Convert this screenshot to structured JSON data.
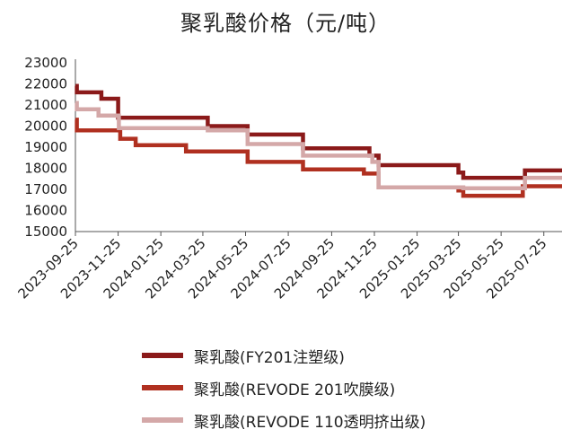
{
  "chart_data": {
    "type": "line",
    "title": "聚乳酸价格（元/吨）",
    "step": true,
    "ylim": [
      15000,
      23000
    ],
    "yticks": [
      15000,
      16000,
      17000,
      18000,
      19000,
      20000,
      21000,
      22000,
      23000
    ],
    "xlim": [
      "2023-09-25",
      "2025-08-20"
    ],
    "xticks": [
      "2023-09-25",
      "2023-11-25",
      "2024-01-25",
      "2024-03-25",
      "2024-05-25",
      "2024-07-25",
      "2024-09-25",
      "2024-11-25",
      "2025-01-25",
      "2025-03-25",
      "2025-05-25",
      "2025-07-25"
    ],
    "legend_position": "bottom",
    "series": [
      {
        "name": "聚乳酸(FY201注塑级)",
        "color": "#8b1a1a",
        "points": [
          [
            "2023-09-25",
            21900
          ],
          [
            "2023-09-27",
            21600
          ],
          [
            "2023-11-01",
            21300
          ],
          [
            "2023-11-25",
            20400
          ],
          [
            "2024-04-01",
            20000
          ],
          [
            "2024-05-28",
            19600
          ],
          [
            "2024-08-15",
            18950
          ],
          [
            "2024-11-18",
            18600
          ],
          [
            "2024-12-01",
            18150
          ],
          [
            "2025-03-25",
            17800
          ],
          [
            "2025-04-01",
            17550
          ],
          [
            "2025-06-28",
            17900
          ],
          [
            "2025-08-20",
            17900
          ]
        ]
      },
      {
        "name": "聚乳酸(REVODE 201吹膜级)",
        "color": "#b03020",
        "points": [
          [
            "2023-09-25",
            20300
          ],
          [
            "2023-09-27",
            19800
          ],
          [
            "2023-11-28",
            19400
          ],
          [
            "2023-12-20",
            19100
          ],
          [
            "2024-03-01",
            18800
          ],
          [
            "2024-05-28",
            18300
          ],
          [
            "2024-08-15",
            17950
          ],
          [
            "2024-11-10",
            17750
          ],
          [
            "2024-12-01",
            17100
          ],
          [
            "2025-03-25",
            16950
          ],
          [
            "2025-04-01",
            16700
          ],
          [
            "2025-06-25",
            17150
          ],
          [
            "2025-08-20",
            17150
          ]
        ]
      },
      {
        "name": "聚乳酸(REVODE 110透明挤出级)",
        "color": "#d4a8a8",
        "points": [
          [
            "2023-09-25",
            21100
          ],
          [
            "2023-09-27",
            20800
          ],
          [
            "2023-10-28",
            20500
          ],
          [
            "2023-11-26",
            19900
          ],
          [
            "2024-04-01",
            19800
          ],
          [
            "2024-05-28",
            19150
          ],
          [
            "2024-08-15",
            18600
          ],
          [
            "2024-11-22",
            18300
          ],
          [
            "2024-12-01",
            17100
          ],
          [
            "2025-03-25",
            17100
          ],
          [
            "2025-04-01",
            17050
          ],
          [
            "2025-06-28",
            17550
          ],
          [
            "2025-08-20",
            17550
          ]
        ]
      }
    ]
  }
}
